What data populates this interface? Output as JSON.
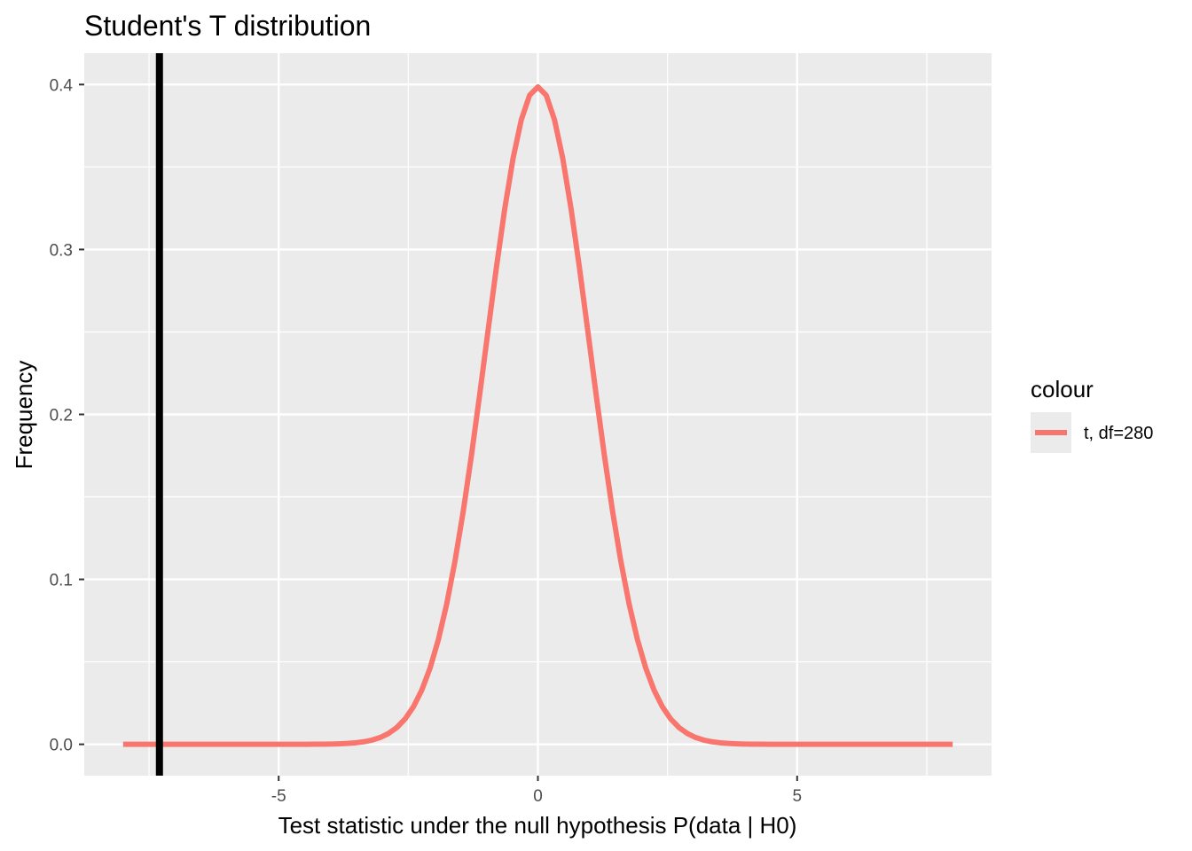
{
  "chart_data": {
    "type": "line",
    "title": "Student's T distribution",
    "xlabel": "Test statistic under the null hypothesis P(data | H0)",
    "ylabel": "Frequency",
    "xlim": [
      -8.75,
      8.75
    ],
    "ylim": [
      -0.019,
      0.419
    ],
    "x_ticks": [
      -5,
      0,
      5
    ],
    "x_tick_labels": [
      "-5",
      "0",
      "5"
    ],
    "y_ticks": [
      0.0,
      0.1,
      0.2,
      0.3,
      0.4
    ],
    "y_tick_labels": [
      "0.0",
      "0.1",
      "0.2",
      "0.3",
      "0.4"
    ],
    "grid": true,
    "legend_position": "right",
    "legend_title": "colour",
    "series": [
      {
        "name": "t, df=280",
        "color": "#F8766D",
        "x_range": [
          -8,
          8
        ],
        "points": 101,
        "df": 280
      }
    ],
    "vline": {
      "x": -7.3,
      "color": "#000000"
    },
    "colors": {
      "panel": "#EBEBEB",
      "grid": "#FFFFFF",
      "tick": "#333333"
    }
  }
}
